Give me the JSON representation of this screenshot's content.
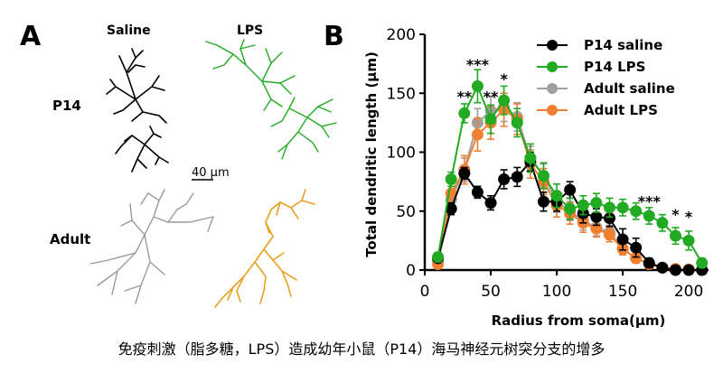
{
  "panel_a": {
    "label": "A",
    "col_saline": "Saline",
    "col_lps": "LPS",
    "row_p14": "P14",
    "row_adult": "Adult",
    "scale_bar": "40 μm",
    "colors": {
      "p14_saline": "#000000",
      "p14_lps": "#22aa22",
      "adult_saline": "#9a9a9a",
      "adult_lps": "#e8a020"
    }
  },
  "caption": "免疫刺激（脂多糖，LPS）造成幼年小鼠（P14）海马神经元树突分支的增多",
  "chart_data": {
    "type": "line",
    "panel_label": "B",
    "xlabel": "Radius from soma(μm)",
    "ylabel": "Total dendritic length (μm)",
    "xlim": [
      0,
      215
    ],
    "ylim": [
      0,
      200
    ],
    "xticks": [
      0,
      50,
      100,
      150,
      200
    ],
    "yticks": [
      0,
      50,
      100,
      150,
      200
    ],
    "grid": false,
    "legend_position": "top-right",
    "x": [
      10,
      20,
      30,
      40,
      50,
      60,
      70,
      80,
      90,
      100,
      110,
      120,
      130,
      140,
      150,
      160,
      170,
      180,
      190,
      200,
      210
    ],
    "series": [
      {
        "name": "Adult saline",
        "color": "#a0a0a0",
        "values": [
          8,
          60,
          85,
          125,
          135,
          138,
          130,
          95,
          80,
          58,
          50,
          42,
          36,
          32,
          18,
          10,
          5,
          2,
          1,
          0.5,
          0
        ],
        "errors": [
          4,
          8,
          10,
          12,
          12,
          12,
          12,
          10,
          10,
          9,
          8,
          8,
          7,
          6,
          5,
          4,
          3,
          2,
          1,
          1,
          0
        ]
      },
      {
        "name": "Adult LPS",
        "color": "#f08030",
        "values": [
          5,
          65,
          85,
          115,
          125,
          136,
          128,
          90,
          75,
          55,
          48,
          40,
          35,
          30,
          18,
          10,
          5,
          2,
          1,
          0.5,
          0
        ],
        "errors": [
          3,
          10,
          12,
          14,
          14,
          14,
          13,
          12,
          11,
          10,
          9,
          8,
          7,
          6,
          5,
          4,
          3,
          2,
          1,
          1,
          0
        ]
      },
      {
        "name": "P14 saline",
        "color": "#000000",
        "values": [
          10,
          52,
          82,
          66,
          57,
          77,
          79,
          92,
          58,
          58,
          68,
          48,
          45,
          44,
          26,
          19,
          6,
          2,
          0,
          0,
          0
        ],
        "errors": [
          3,
          5,
          5,
          5,
          6,
          8,
          8,
          8,
          8,
          8,
          7,
          8,
          7,
          7,
          9,
          8,
          4,
          2,
          0,
          0,
          0
        ]
      },
      {
        "name": "P14 LPS",
        "color": "#22aa22",
        "values": [
          11,
          77,
          133,
          156,
          128,
          144,
          125,
          95,
          80,
          63,
          52,
          55,
          57,
          53,
          53,
          50,
          46,
          40,
          29,
          25,
          6
        ],
        "errors": [
          4,
          6,
          8,
          14,
          12,
          12,
          12,
          12,
          11,
          10,
          9,
          8,
          8,
          8,
          7,
          7,
          7,
          7,
          7,
          8,
          4
        ]
      }
    ],
    "annotations": [
      {
        "x": 30,
        "y": 143,
        "text": "**"
      },
      {
        "x": 40,
        "y": 170,
        "text": "***"
      },
      {
        "x": 50,
        "y": 143,
        "text": "**"
      },
      {
        "x": 60,
        "y": 158,
        "text": "*"
      },
      {
        "x": 170,
        "y": 54,
        "text": "***"
      },
      {
        "x": 190,
        "y": 43,
        "text": "*"
      },
      {
        "x": 200,
        "y": 41,
        "text": "*"
      }
    ],
    "legend_order": [
      "P14 saline",
      "P14 LPS",
      "Adult saline",
      "Adult LPS"
    ]
  }
}
